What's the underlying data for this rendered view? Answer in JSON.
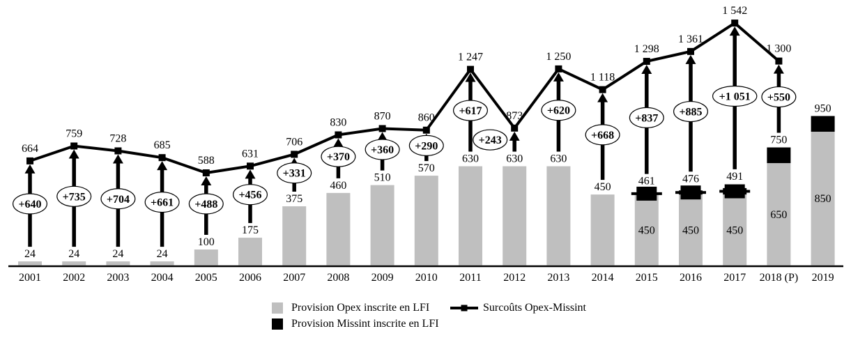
{
  "chart_data": {
    "type": "bar+line",
    "title": "",
    "categories": [
      "2001",
      "2002",
      "2003",
      "2004",
      "2005",
      "2006",
      "2007",
      "2008",
      "2009",
      "2010",
      "2011",
      "2012",
      "2013",
      "2014",
      "2015",
      "2016",
      "2017",
      "2018 (P)",
      "2019"
    ],
    "series": [
      {
        "name": "Provision Opex inscrite en LFI",
        "type": "bar",
        "stack": "lfi",
        "color": "#bfbfbf",
        "values": [
          24,
          24,
          24,
          24,
          100,
          175,
          375,
          460,
          510,
          570,
          630,
          630,
          630,
          450,
          450,
          450,
          450,
          650,
          850
        ]
      },
      {
        "name": "Provision Missint inscrite en LFI",
        "type": "bar",
        "stack": "lfi",
        "color": "#000000",
        "values": [
          0,
          0,
          0,
          0,
          0,
          0,
          0,
          0,
          0,
          0,
          0,
          0,
          0,
          0,
          11,
          26,
          41,
          100,
          100
        ]
      },
      {
        "name": "Surcoûts Opex-Missint",
        "type": "line",
        "color": "#000000",
        "marker": "square",
        "values": [
          664,
          759,
          728,
          685,
          588,
          631,
          706,
          830,
          870,
          860,
          1247,
          873,
          1250,
          1118,
          1298,
          1361,
          1542,
          1300,
          null
        ]
      }
    ],
    "bar_total_labels": [
      "24",
      "24",
      "24",
      "24",
      "100",
      "175",
      "375",
      "460",
      "510",
      "570",
      "630",
      "630",
      "630",
      "450",
      "461",
      "476",
      "491",
      "750",
      "950"
    ],
    "bar_inner_gray_labels": [
      null,
      null,
      null,
      null,
      null,
      null,
      null,
      null,
      null,
      null,
      null,
      null,
      null,
      null,
      "450",
      "450",
      "450",
      "650",
      "850"
    ],
    "bar_inner_black_labels": [
      null,
      null,
      null,
      null,
      null,
      null,
      null,
      null,
      null,
      null,
      null,
      null,
      null,
      null,
      "11",
      "26",
      "41",
      "100",
      "100"
    ],
    "line_point_labels": [
      "664",
      "759",
      "728",
      "685",
      "588",
      "631",
      "706",
      "830",
      "870",
      "860",
      "1 247",
      "873",
      "1 250",
      "1 118",
      "1 298",
      "1 361",
      "1 542",
      "1 300",
      null
    ],
    "delta_values": [
      640,
      735,
      704,
      661,
      488,
      456,
      331,
      370,
      360,
      290,
      617,
      243,
      620,
      668,
      837,
      885,
      1051,
      550,
      null
    ],
    "delta_labels": [
      "+640",
      "+735",
      "+704",
      "+661",
      "+488",
      "+456",
      "+331",
      "+370",
      "+360",
      "+290",
      "+617",
      "+243",
      "+620",
      "+668",
      "+837",
      "+885",
      "+1 051",
      "+550",
      null
    ],
    "delta_oval_dx": [
      0,
      0,
      0,
      0,
      0,
      0,
      0,
      0,
      0,
      0,
      0,
      -35,
      0,
      0,
      0,
      0,
      0,
      0,
      0
    ],
    "ylim": [
      0,
      1700
    ],
    "axis": {
      "x_axis_visible": true,
      "y_axis_visible": false,
      "grid": false
    },
    "legend_position": "bottom"
  },
  "legend": {
    "items": [
      {
        "label": "Provision Opex inscrite en LFI",
        "swatch": "gray-square",
        "color": "#bfbfbf"
      },
      {
        "label": "Provision Missint inscrite en LFI",
        "swatch": "black-square",
        "color": "#000000"
      },
      {
        "label": "Surcoûts Opex-Missint",
        "swatch": "line-marker",
        "color": "#000000"
      }
    ]
  },
  "colors": {
    "bar_gray": "#bfbfbf",
    "black": "#000000",
    "background": "#ffffff"
  }
}
